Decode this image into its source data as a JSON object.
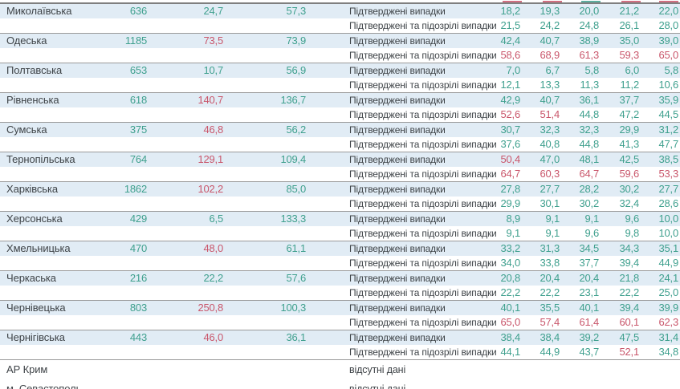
{
  "chart_data": {
    "type": "table",
    "row_labels": {
      "confirmed": "Підтверджені випадки",
      "suspected": "Підтверджені та підозрілі випадки"
    },
    "no_data_label": "відсутні дані",
    "regions": [
      {
        "name": "Миколаївська",
        "total": "636",
        "rate1": "24,7",
        "rate1_red": false,
        "rate2": "57,3",
        "confirmed": {
          "values": [
            "18,2",
            "19,3",
            "20,0",
            "21,2",
            "22,0"
          ],
          "red": []
        },
        "suspected": {
          "values": [
            "21,5",
            "24,2",
            "24,8",
            "26,1",
            "28,0"
          ],
          "red": []
        }
      },
      {
        "name": "Одеська",
        "total": "1185",
        "rate1": "73,5",
        "rate1_red": true,
        "rate2": "73,9",
        "confirmed": {
          "values": [
            "42,4",
            "40,7",
            "38,9",
            "35,0",
            "39,0"
          ],
          "red": []
        },
        "suspected": {
          "values": [
            "58,6",
            "68,9",
            "61,3",
            "59,3",
            "65,0"
          ],
          "red": [
            0,
            1,
            2,
            3,
            4
          ]
        }
      },
      {
        "name": "Полтавська",
        "total": "653",
        "rate1": "10,7",
        "rate1_red": false,
        "rate2": "56,9",
        "confirmed": {
          "values": [
            "7,0",
            "6,7",
            "5,8",
            "6,0",
            "5,8"
          ],
          "red": []
        },
        "suspected": {
          "values": [
            "12,1",
            "13,3",
            "11,3",
            "11,2",
            "10,6"
          ],
          "red": []
        }
      },
      {
        "name": "Рівненська",
        "total": "618",
        "rate1": "140,7",
        "rate1_red": true,
        "rate2": "136,7",
        "confirmed": {
          "values": [
            "42,9",
            "40,7",
            "36,1",
            "37,7",
            "35,9"
          ],
          "red": []
        },
        "suspected": {
          "values": [
            "52,6",
            "51,4",
            "44,8",
            "47,2",
            "44,5"
          ],
          "red": [
            0,
            1
          ]
        }
      },
      {
        "name": "Сумська",
        "total": "375",
        "rate1": "46,8",
        "rate1_red": true,
        "rate2": "56,2",
        "confirmed": {
          "values": [
            "30,7",
            "32,3",
            "32,3",
            "29,9",
            "31,2"
          ],
          "red": []
        },
        "suspected": {
          "values": [
            "37,6",
            "40,8",
            "44,8",
            "41,3",
            "47,7"
          ],
          "red": []
        }
      },
      {
        "name": "Тернопільська",
        "total": "764",
        "rate1": "129,1",
        "rate1_red": true,
        "rate2": "109,4",
        "confirmed": {
          "values": [
            "50,4",
            "47,0",
            "48,1",
            "42,5",
            "38,5"
          ],
          "red": [
            0
          ]
        },
        "suspected": {
          "values": [
            "64,7",
            "60,3",
            "64,7",
            "59,6",
            "53,3"
          ],
          "red": [
            0,
            1,
            2,
            3,
            4
          ]
        }
      },
      {
        "name": "Харківська",
        "total": "1862",
        "rate1": "102,2",
        "rate1_red": true,
        "rate2": "85,0",
        "confirmed": {
          "values": [
            "27,8",
            "27,7",
            "28,2",
            "30,2",
            "27,7"
          ],
          "red": []
        },
        "suspected": {
          "values": [
            "29,9",
            "30,1",
            "30,2",
            "32,4",
            "28,6"
          ],
          "red": []
        }
      },
      {
        "name": "Херсонська",
        "total": "429",
        "rate1": "6,5",
        "rate1_red": false,
        "rate2": "133,3",
        "confirmed": {
          "values": [
            "8,9",
            "9,1",
            "9,1",
            "9,6",
            "10,0"
          ],
          "red": []
        },
        "suspected": {
          "values": [
            "9,1",
            "9,1",
            "9,6",
            "9,8",
            "10,0"
          ],
          "red": []
        }
      },
      {
        "name": "Хмельницька",
        "total": "470",
        "rate1": "48,0",
        "rate1_red": true,
        "rate2": "61,1",
        "confirmed": {
          "values": [
            "33,2",
            "31,3",
            "34,5",
            "34,3",
            "35,1"
          ],
          "red": []
        },
        "suspected": {
          "values": [
            "34,0",
            "33,8",
            "37,7",
            "39,4",
            "44,9"
          ],
          "red": []
        }
      },
      {
        "name": "Черкаська",
        "total": "216",
        "rate1": "22,2",
        "rate1_red": false,
        "rate2": "57,6",
        "confirmed": {
          "values": [
            "20,8",
            "20,4",
            "20,4",
            "21,8",
            "24,1"
          ],
          "red": []
        },
        "suspected": {
          "values": [
            "22,2",
            "22,2",
            "23,1",
            "22,2",
            "25,0"
          ],
          "red": []
        }
      },
      {
        "name": "Чернівецька",
        "total": "803",
        "rate1": "250,8",
        "rate1_red": true,
        "rate2": "100,3",
        "confirmed": {
          "values": [
            "40,1",
            "35,5",
            "40,1",
            "39,4",
            "39,9"
          ],
          "red": []
        },
        "suspected": {
          "values": [
            "65,0",
            "57,4",
            "61,4",
            "60,1",
            "62,3"
          ],
          "red": [
            0,
            1,
            2,
            3,
            4
          ]
        }
      },
      {
        "name": "Чернігівська",
        "total": "443",
        "rate1": "46,0",
        "rate1_red": true,
        "rate2": "36,1",
        "confirmed": {
          "values": [
            "38,4",
            "38,4",
            "39,2",
            "47,5",
            "31,4"
          ],
          "red": []
        },
        "suspected": {
          "values": [
            "44,1",
            "44,9",
            "43,7",
            "52,1",
            "34,8"
          ],
          "red": [
            3
          ]
        }
      }
    ],
    "no_data_regions": [
      "АР Крим",
      "м. Севастополь"
    ]
  },
  "colors": {
    "green": "#3fa08e",
    "red": "#c9566b",
    "row_highlight": "#e1ecf5",
    "separator": "#9a9a9a",
    "text": "#3e4347"
  }
}
